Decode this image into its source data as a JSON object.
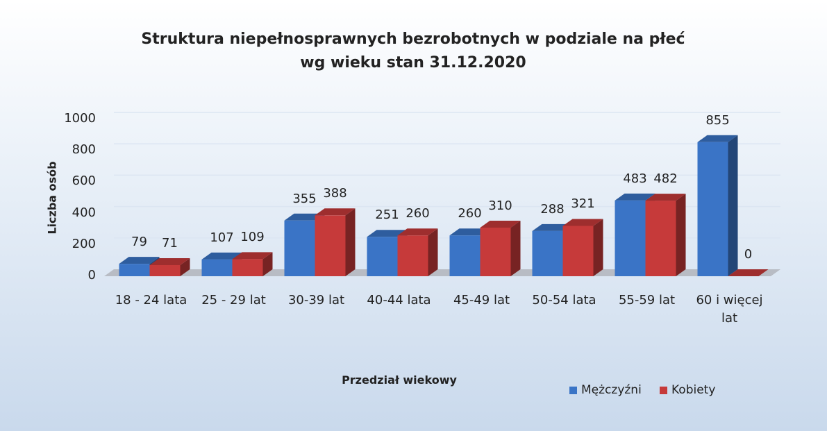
{
  "chart_data": {
    "type": "bar3d",
    "title": "Struktura niepełnosprawnych bezrobotnych w podziale na płeć wg wieku stan 31.12.2020",
    "xlabel": "Przedział wiekowy",
    "ylabel": "Liczba osób",
    "categories": [
      "18 - 24 lata",
      "25 - 29 lat",
      "30-39 lat",
      "40-44 lata",
      "45-49 lat",
      "50-54 lata",
      "55-59 lat",
      "60 i więcej lat"
    ],
    "series": [
      {
        "name": "Mężczyźni",
        "color": "#3a74c6",
        "values": [
          79,
          107,
          355,
          251,
          260,
          288,
          483,
          855
        ]
      },
      {
        "name": "Kobiety",
        "color": "#c63a3a",
        "values": [
          71,
          109,
          388,
          260,
          310,
          321,
          482,
          0
        ]
      }
    ],
    "ylim": [
      0,
      1000
    ],
    "yticks": [
      0,
      200,
      400,
      600,
      800,
      1000
    ],
    "grid": true,
    "legend": "bottom-right"
  }
}
